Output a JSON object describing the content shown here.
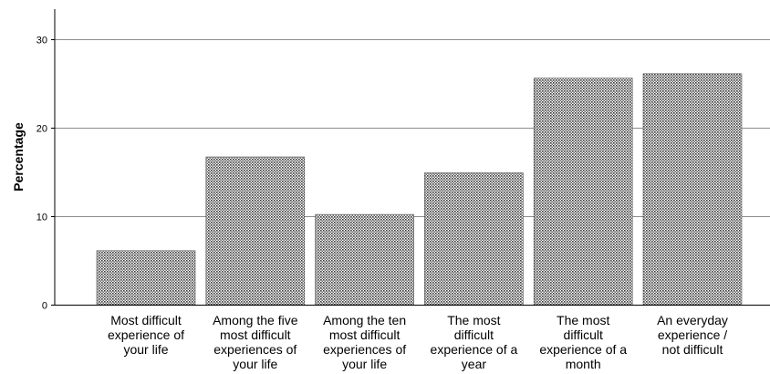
{
  "chart_data": {
    "type": "bar",
    "title": "",
    "xlabel": "",
    "ylabel": "Percentage",
    "ylim": [
      0,
      35
    ],
    "yticks": [
      0,
      10,
      20,
      30
    ],
    "grid": true,
    "bar_fill": "dotted",
    "categories": [
      [
        "Most difficult",
        "experience of",
        "your life"
      ],
      [
        "Among the five",
        "most difficult",
        "experiences of",
        "your life"
      ],
      [
        "Among the ten",
        "most difficult",
        "experiences of",
        "your life"
      ],
      [
        "The most",
        "difficult",
        "experience of a",
        "year"
      ],
      [
        "The most",
        "difficult",
        "experience of a",
        "month"
      ],
      [
        "An everyday",
        "experience /",
        "not difficult"
      ]
    ],
    "values": [
      6.1,
      16.7,
      10.2,
      14.9,
      25.6,
      26.1
    ]
  }
}
